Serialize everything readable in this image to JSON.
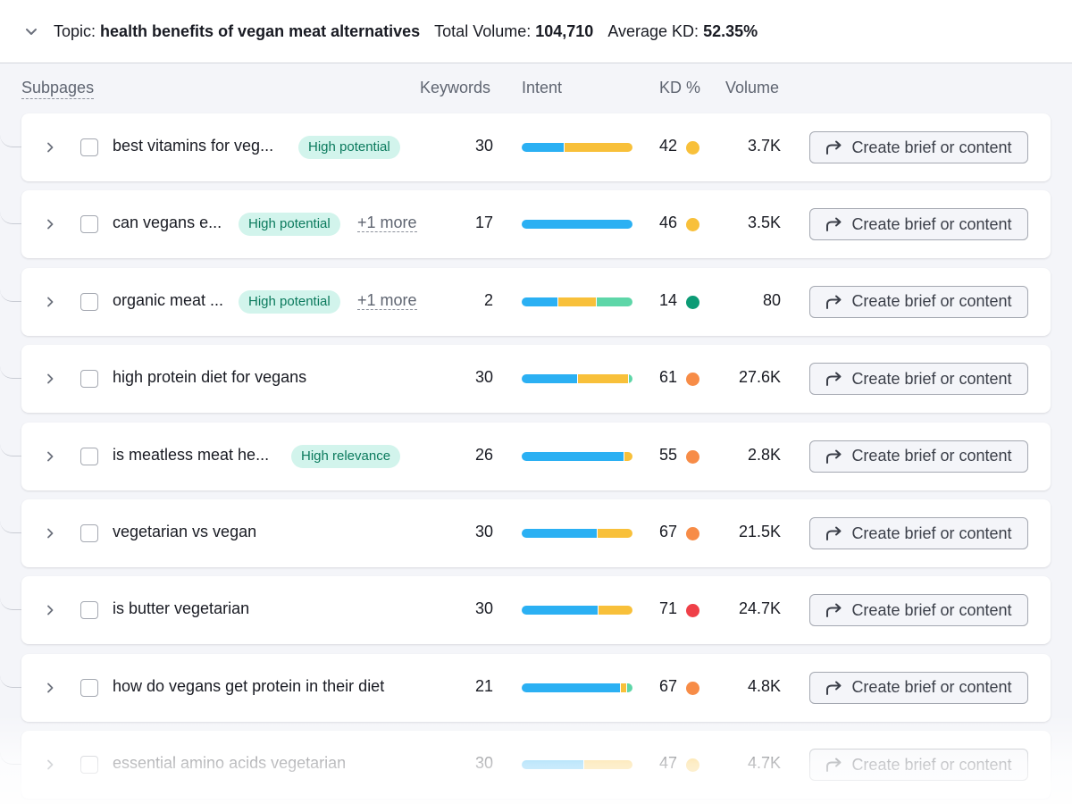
{
  "header": {
    "topic_label": "Topic:",
    "topic_value": "health benefits of vegan meat alternatives",
    "volume_label": "Total Volume:",
    "volume_value": "104,710",
    "kd_label": "Average KD:",
    "kd_value": "52.35%"
  },
  "columns": {
    "subpages": "Subpages",
    "keywords": "Keywords",
    "intent": "Intent",
    "kd": "KD %",
    "volume": "Volume"
  },
  "colors": {
    "informational": "#2bb0f3",
    "commercial": "#f8c03a",
    "transactional": "#5ed6a8",
    "kd_easy": "#0c9b75",
    "kd_possible": "#f8c03a",
    "kd_hard": "#f78c47",
    "kd_very_hard": "#ef4048"
  },
  "button_label": "Create brief or content",
  "rows": [
    {
      "title": "best vitamins for veg...",
      "badge": "High potential",
      "more": "",
      "keywords": "30",
      "intent": [
        {
          "color": "#2bb0f3",
          "share": 0.38
        },
        {
          "color": "#f8c03a",
          "share": 0.62
        }
      ],
      "kd": "42",
      "kd_color": "#f8c03a",
      "volume": "3.7K"
    },
    {
      "title": "can vegans e...",
      "badge": "High potential",
      "more": "+1 more",
      "keywords": "17",
      "intent": [
        {
          "color": "#2bb0f3",
          "share": 1.0
        }
      ],
      "kd": "46",
      "kd_color": "#f8c03a",
      "volume": "3.5K"
    },
    {
      "title": "organic meat ...",
      "badge": "High potential",
      "more": "+1 more",
      "keywords": "2",
      "intent": [
        {
          "color": "#2bb0f3",
          "share": 0.33
        },
        {
          "color": "#f8c03a",
          "share": 0.34
        },
        {
          "color": "#5ed6a8",
          "share": 0.33
        }
      ],
      "kd": "14",
      "kd_color": "#0c9b75",
      "volume": "80"
    },
    {
      "title": "high protein diet for vegans",
      "badge": "",
      "more": "",
      "keywords": "30",
      "intent": [
        {
          "color": "#2bb0f3",
          "share": 0.51
        },
        {
          "color": "#f8c03a",
          "share": 0.46
        },
        {
          "color": "#5ed6a8",
          "share": 0.03
        }
      ],
      "kd": "61",
      "kd_color": "#f78c47",
      "volume": "27.6K"
    },
    {
      "title": "is meatless meat he...",
      "badge": "High relevance",
      "more": "",
      "keywords": "26",
      "intent": [
        {
          "color": "#2bb0f3",
          "share": 0.93
        },
        {
          "color": "#f8c03a",
          "share": 0.07
        }
      ],
      "kd": "55",
      "kd_color": "#f78c47",
      "volume": "2.8K"
    },
    {
      "title": "vegetarian vs vegan",
      "badge": "",
      "more": "",
      "keywords": "30",
      "intent": [
        {
          "color": "#2bb0f3",
          "share": 0.68
        },
        {
          "color": "#f8c03a",
          "share": 0.32
        }
      ],
      "kd": "67",
      "kd_color": "#f78c47",
      "volume": "21.5K"
    },
    {
      "title": "is butter vegetarian",
      "badge": "",
      "more": "",
      "keywords": "30",
      "intent": [
        {
          "color": "#2bb0f3",
          "share": 0.69
        },
        {
          "color": "#f8c03a",
          "share": 0.31
        }
      ],
      "kd": "71",
      "kd_color": "#ef4048",
      "volume": "24.7K"
    },
    {
      "title": "how do vegans get protein in their diet",
      "badge": "",
      "more": "",
      "keywords": "21",
      "intent": [
        {
          "color": "#2bb0f3",
          "share": 0.9
        },
        {
          "color": "#f8c03a",
          "share": 0.05
        },
        {
          "color": "#5ed6a8",
          "share": 0.05
        }
      ],
      "kd": "67",
      "kd_color": "#f78c47",
      "volume": "4.8K"
    },
    {
      "title": "essential amino acids vegetarian",
      "badge": "",
      "more": "",
      "keywords": "30",
      "intent": [
        {
          "color": "#2bb0f3",
          "share": 0.56
        },
        {
          "color": "#f8c03a",
          "share": 0.44
        }
      ],
      "kd": "47",
      "kd_color": "#f8c03a",
      "volume": "4.7K"
    }
  ]
}
